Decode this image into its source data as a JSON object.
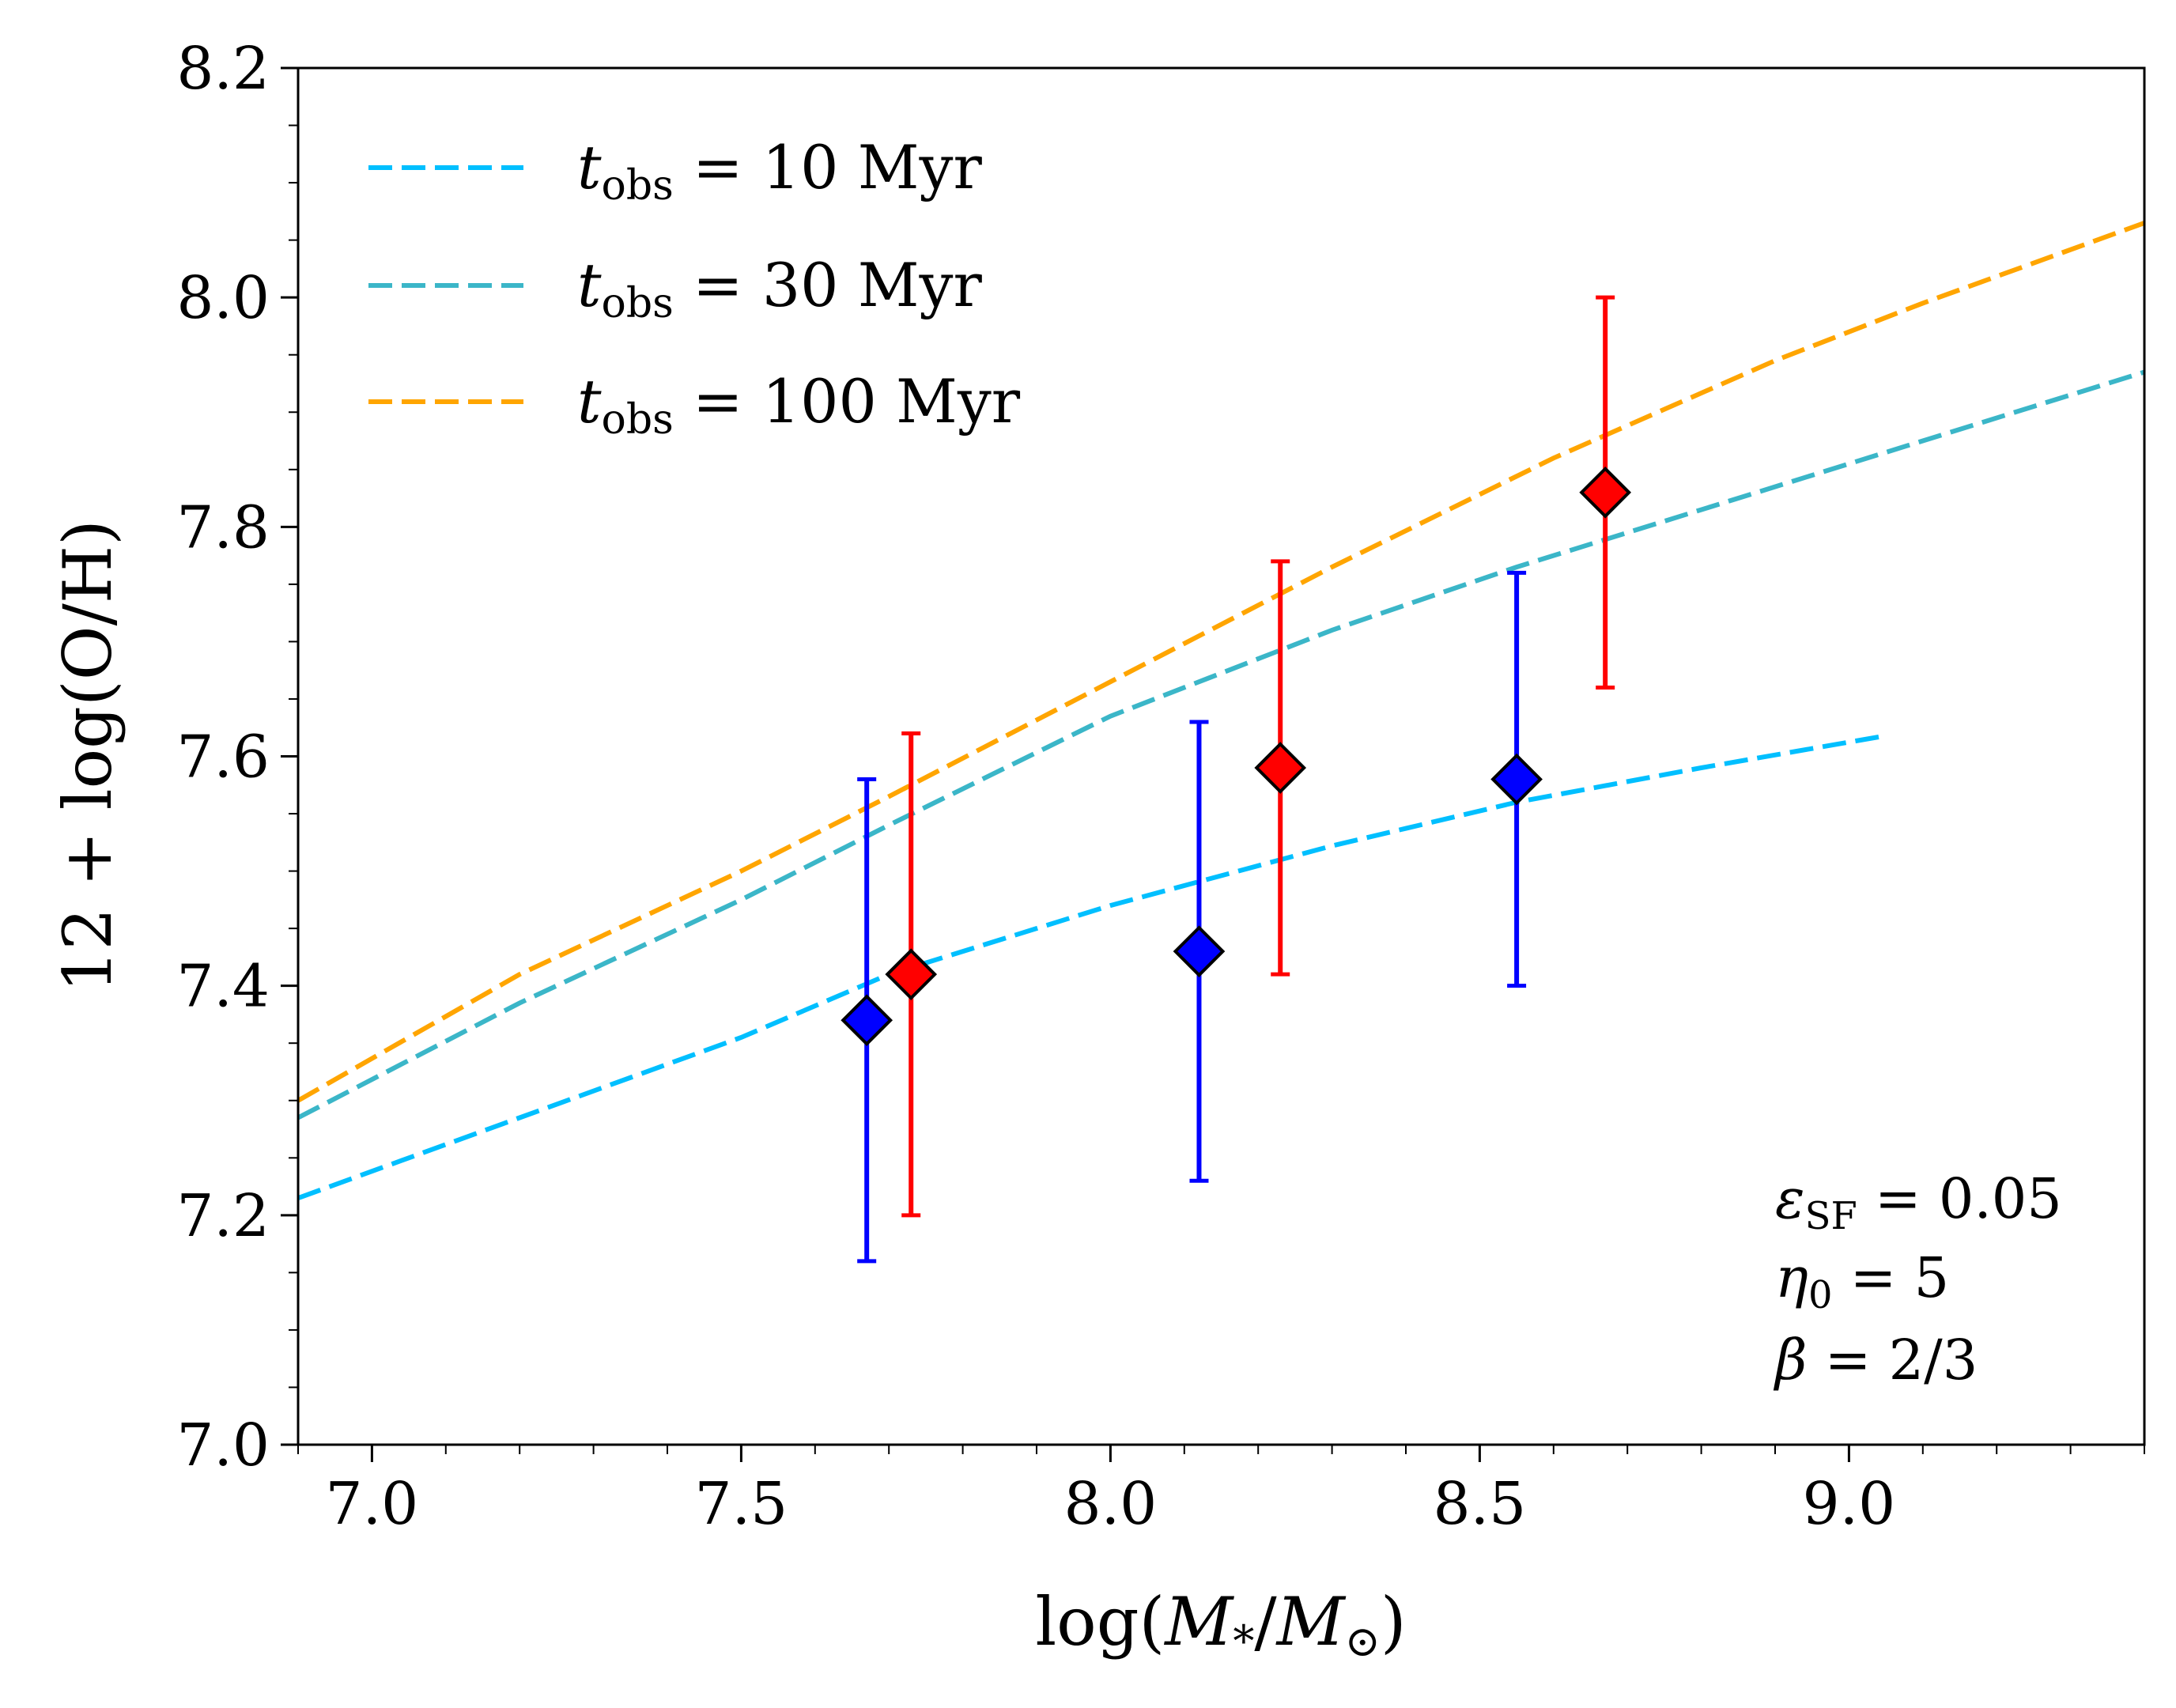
{
  "chart_data": {
    "type": "line",
    "xlabel": "log(M*/M⊙)",
    "xlabel_parts": {
      "pre": "log(",
      "m1": "M",
      "sub1": "*",
      "mid": "/",
      "m2": "M",
      "sub2": "⊙",
      "post": ")"
    },
    "ylabel": "12 + log(O/H)",
    "xlim": [
      6.9,
      9.4
    ],
    "ylim": [
      7.0,
      8.2
    ],
    "xticks": [
      "7.0",
      "7.5",
      "8.0",
      "8.5",
      "9.0"
    ],
    "yticks": [
      "7.0",
      "7.2",
      "7.4",
      "7.6",
      "7.8",
      "8.0",
      "8.2"
    ],
    "grid": false,
    "legend_position": "top-left",
    "series": [
      {
        "name": "t_obs = 10 Myr",
        "name_parts": {
          "var": "t",
          "sub": "obs",
          "rest": " = 10 Myr"
        },
        "style": "dashed",
        "color": "#00bfff",
        "x": [
          6.9,
          7.2,
          7.5,
          7.7,
          8.0,
          8.3,
          8.55,
          8.8,
          9.05
        ],
        "y": [
          7.215,
          7.285,
          7.355,
          7.41,
          7.47,
          7.522,
          7.56,
          7.59,
          7.618
        ]
      },
      {
        "name": "t_obs = 30 Myr",
        "name_parts": {
          "var": "t",
          "sub": "obs",
          "rest": " = 30 Myr"
        },
        "style": "dashed",
        "color": "#3bb6c8",
        "x": [
          6.9,
          7.2,
          7.5,
          7.7,
          8.0,
          8.3,
          8.55,
          8.8,
          9.1,
          9.4
        ],
        "y": [
          7.285,
          7.385,
          7.475,
          7.54,
          7.635,
          7.71,
          7.765,
          7.815,
          7.875,
          7.935
        ]
      },
      {
        "name": "t_obs = 100 Myr",
        "name_parts": {
          "var": "t",
          "sub": "obs",
          "rest": " = 100 Myr"
        },
        "style": "dashed",
        "color": "#ffa500",
        "x": [
          6.9,
          7.2,
          7.5,
          7.7,
          8.0,
          8.3,
          8.6,
          8.9,
          9.1,
          9.4
        ],
        "y": [
          7.3,
          7.41,
          7.5,
          7.565,
          7.665,
          7.765,
          7.86,
          7.945,
          7.995,
          8.065
        ]
      }
    ],
    "points": [
      {
        "x": 7.67,
        "y": 7.37,
        "err_low": 7.16,
        "err_high": 7.58,
        "color": "#0000ff"
      },
      {
        "x": 8.12,
        "y": 7.43,
        "err_low": 7.23,
        "err_high": 7.63,
        "color": "#0000ff"
      },
      {
        "x": 8.55,
        "y": 7.58,
        "err_low": 7.4,
        "err_high": 7.76,
        "color": "#0000ff"
      },
      {
        "x": 7.73,
        "y": 7.41,
        "err_low": 7.2,
        "err_high": 7.62,
        "color": "#ff0000"
      },
      {
        "x": 8.23,
        "y": 7.59,
        "err_low": 7.41,
        "err_high": 7.77,
        "color": "#ff0000"
      },
      {
        "x": 8.67,
        "y": 7.83,
        "err_low": 7.66,
        "err_high": 8.0,
        "color": "#ff0000"
      }
    ],
    "annotations": [
      {
        "var": "ε",
        "sub": "SF",
        "rest": " = 0.05"
      },
      {
        "var": "η",
        "sub": "0",
        "rest": " = 5"
      },
      {
        "var": "β",
        "sub": "",
        "rest": " = 2/3"
      }
    ]
  }
}
